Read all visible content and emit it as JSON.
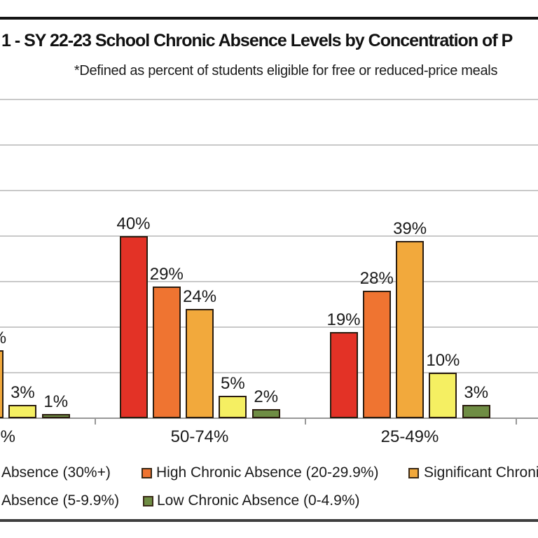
{
  "page": {
    "background": "#ffffff",
    "top_border_color": "#151515",
    "bottom_border_color": "#3e3e3e"
  },
  "chart_data": {
    "type": "bar",
    "title_visible": "1 - SY 22-23 School Chronic Absence Levels by Concentration of P",
    "subtitle": "*Defined as percent of students eligible for free or reduced-price meals",
    "xlabel": "",
    "ylabel": "",
    "ylim": [
      0,
      70
    ],
    "grid_step_pct": 10,
    "grid": "on",
    "legend_position": "bottom",
    "bar_label_suffix": "%",
    "categories": [
      {
        "label": "%",
        "partial": true
      },
      {
        "label": "50-74%",
        "partial": false
      },
      {
        "label": "25-49%",
        "partial": false
      }
    ],
    "series": [
      {
        "name": "extreme",
        "legend_visible": "Absence (30%+)",
        "color": "#e33226",
        "values": [
          null,
          40,
          19
        ]
      },
      {
        "name": "high",
        "legend_visible": "High Chronic Absence (20-29.9%)",
        "color": "#ef7431",
        "values": [
          null,
          29,
          28
        ]
      },
      {
        "name": "significant",
        "legend_visible": "Significant Chronic",
        "color": "#f2a93c",
        "values": [
          15,
          24,
          39
        ]
      },
      {
        "name": "moderate",
        "legend_visible": "Absence (5-9.9%)",
        "color": "#f5ef62",
        "values": [
          3,
          5,
          10
        ]
      },
      {
        "name": "low",
        "legend_visible": "Low Chronic Absence (0-4.9%)",
        "color": "#6f8d44",
        "values": [
          1,
          2,
          3
        ]
      }
    ],
    "style_colors": {
      "gridline": "#c9c9c9",
      "axis": "#989898",
      "bar_border": "#2b1d10",
      "text": "#1a1a1a"
    }
  }
}
